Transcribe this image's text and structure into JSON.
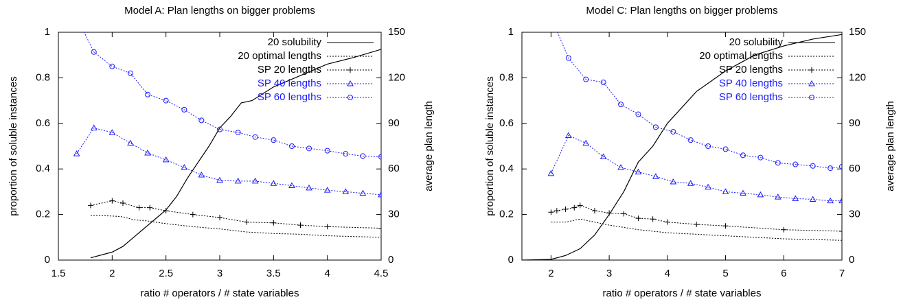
{
  "chart_data": [
    {
      "type": "line",
      "title": "Model A: Plan lengths on bigger problems",
      "xlabel": "ratio # operators / # state variables",
      "ylabel": "proportion of soluble instances",
      "y2label": "average plan length",
      "xlim": [
        1.5,
        4.5
      ],
      "xticks": [
        1.5,
        2,
        2.5,
        3,
        3.5,
        4,
        4.5
      ],
      "ylim": [
        0,
        1
      ],
      "yticks": [
        0,
        0.2,
        0.4,
        0.6,
        0.8,
        1
      ],
      "y2lim": [
        0,
        150
      ],
      "y2ticks": [
        0,
        30,
        60,
        90,
        120,
        150
      ],
      "legend": "top-right",
      "series": [
        {
          "name": "20 solubility",
          "color": "#000000",
          "axis": "y",
          "dash": false,
          "x": [
            1.8,
            2.0,
            2.1,
            2.2,
            2.3,
            2.4,
            2.5,
            2.6,
            2.7,
            2.8,
            2.9,
            3.0,
            3.1,
            3.2,
            3.3,
            3.5,
            3.75,
            4.0,
            4.25,
            4.5
          ],
          "values": [
            0.01,
            0.035,
            0.06,
            0.1,
            0.14,
            0.18,
            0.22,
            0.28,
            0.36,
            0.43,
            0.5,
            0.58,
            0.63,
            0.69,
            0.7,
            0.76,
            0.81,
            0.86,
            0.89,
            0.925
          ]
        },
        {
          "name": "20 optimal lengths",
          "color": "#000000",
          "axis": "y2",
          "dash": true,
          "x": [
            1.8,
            2.0,
            2.1,
            2.2,
            2.3,
            2.5,
            2.75,
            3.0,
            3.25,
            3.5,
            3.75,
            4.0,
            4.25,
            4.5
          ],
          "values": [
            29.5,
            29,
            28.5,
            26.5,
            26,
            24,
            22,
            20.5,
            18.5,
            17.5,
            17,
            16,
            15.5,
            15
          ]
        },
        {
          "name": "SP 20 lengths",
          "color": "#000000",
          "axis": "y2",
          "dash": true,
          "marker": "plus",
          "x": [
            1.8,
            2.0,
            2.1,
            2.25,
            2.35,
            2.5,
            2.75,
            3.0,
            3.25,
            3.5,
            3.75,
            4.0,
            4.5
          ],
          "values": [
            36,
            39,
            37.5,
            34.5,
            34.5,
            32.5,
            30,
            28,
            25,
            24.5,
            23,
            22,
            21
          ]
        },
        {
          "name": "SP 40 lengths",
          "color": "#1a1aff",
          "axis": "y2",
          "dash": true,
          "marker": "triangle",
          "x": [
            1.67,
            1.83,
            2.0,
            2.17,
            2.33,
            2.5,
            2.67,
            2.83,
            3.0,
            3.17,
            3.33,
            3.5,
            3.67,
            3.83,
            4.0,
            4.17,
            4.33,
            4.5
          ],
          "values": [
            70,
            87,
            84,
            77,
            70.5,
            66,
            61,
            56,
            52.5,
            52,
            52,
            50.5,
            49,
            47.5,
            46,
            45,
            44,
            43
          ]
        },
        {
          "name": "SP 60 lengths",
          "color": "#1a1aff",
          "axis": "y2",
          "dash": true,
          "marker": "circle",
          "x": [
            1.67,
            1.83,
            2.0,
            2.17,
            2.33,
            2.5,
            2.67,
            2.83,
            3.0,
            3.17,
            3.33,
            3.5,
            3.67,
            3.83,
            4.0,
            4.17,
            4.33,
            4.5
          ],
          "values": [
            160,
            137,
            127.5,
            123,
            109,
            105,
            99,
            92,
            86,
            84,
            81,
            79,
            75,
            73.5,
            72,
            70,
            68.5,
            68
          ]
        }
      ]
    },
    {
      "type": "line",
      "title": "Model C: Plan lengths on bigger problems",
      "xlabel": "ratio # operators / # state variables",
      "ylabel": "proportion of soluble instances",
      "y2label": "average plan length",
      "xlim": [
        1.5,
        7
      ],
      "xticks": [
        2,
        3,
        4,
        5,
        6,
        7
      ],
      "ylim": [
        0,
        1
      ],
      "yticks": [
        0,
        0.2,
        0.4,
        0.6,
        0.8,
        1
      ],
      "y2lim": [
        0,
        150
      ],
      "y2ticks": [
        0,
        30,
        60,
        90,
        120,
        150
      ],
      "legend": "top-right",
      "series": [
        {
          "name": "20 solubility",
          "color": "#000000",
          "axis": "y",
          "dash": false,
          "x": [
            1.5,
            2.0,
            2.25,
            2.5,
            2.75,
            3.0,
            3.25,
            3.5,
            3.75,
            4.0,
            4.25,
            4.5,
            5.0,
            5.5,
            6.0,
            6.5,
            7.0
          ],
          "values": [
            0,
            0.003,
            0.02,
            0.05,
            0.11,
            0.2,
            0.3,
            0.43,
            0.5,
            0.6,
            0.67,
            0.74,
            0.83,
            0.9,
            0.94,
            0.97,
            0.99
          ]
        },
        {
          "name": "20 optimal lengths",
          "color": "#000000",
          "axis": "y2",
          "dash": true,
          "x": [
            2.0,
            2.25,
            2.5,
            2.75,
            3.0,
            3.5,
            4.0,
            4.5,
            5.0,
            5.5,
            6.0,
            6.5,
            7.0
          ],
          "values": [
            25,
            25,
            27,
            25,
            23,
            20,
            18,
            17,
            16,
            15,
            14,
            13.5,
            13
          ]
        },
        {
          "name": "SP 20 lengths",
          "color": "#000000",
          "axis": "y2",
          "dash": true,
          "marker": "plus",
          "x": [
            2.0,
            2.1,
            2.25,
            2.4,
            2.5,
            2.75,
            3.0,
            3.25,
            3.5,
            3.75,
            4.0,
            4.5,
            5.0,
            6.0,
            7.0
          ],
          "values": [
            31.5,
            32.5,
            33.5,
            34.5,
            36,
            32.5,
            31,
            30.5,
            27.5,
            27,
            25,
            23.5,
            22.5,
            20,
            19
          ]
        },
        {
          "name": "SP 40 lengths",
          "color": "#1a1aff",
          "axis": "y2",
          "dash": true,
          "marker": "triangle",
          "x": [
            2.0,
            2.3,
            2.6,
            2.9,
            3.2,
            3.5,
            3.8,
            4.1,
            4.4,
            4.7,
            5.0,
            5.3,
            5.6,
            5.9,
            6.2,
            6.5,
            6.8,
            7.0
          ],
          "values": [
            57,
            82,
            77,
            68,
            61,
            58,
            55,
            51.5,
            50.5,
            48,
            45,
            44,
            43,
            41.5,
            40.5,
            40,
            39,
            39
          ]
        },
        {
          "name": "SP 60 lengths",
          "color": "#1a1aff",
          "axis": "y2",
          "dash": true,
          "marker": "circle",
          "x": [
            2.0,
            2.3,
            2.6,
            2.9,
            3.2,
            3.5,
            3.8,
            4.1,
            4.4,
            4.7,
            5.0,
            5.3,
            5.6,
            5.9,
            6.2,
            6.5,
            6.8,
            7.0
          ],
          "values": [
            160,
            133,
            119,
            117,
            102.5,
            96,
            87.5,
            84.5,
            79,
            75,
            73,
            69,
            67.5,
            64,
            63,
            62,
            60.5,
            61.5
          ]
        }
      ]
    }
  ]
}
